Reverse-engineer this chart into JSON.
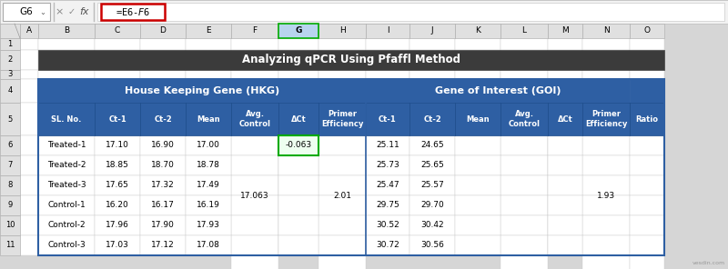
{
  "title": "Analyzing qPCR Using Pfaffl Method",
  "formula_bar_text": "=E6-$F$6",
  "cell_ref": "G6",
  "col_headers": [
    "A",
    "B",
    "C",
    "D",
    "E",
    "F",
    "G",
    "H",
    "I",
    "J",
    "K",
    "L",
    "M",
    "N",
    "O"
  ],
  "header_row4_hkg": "House Keeping Gene (HKG)",
  "header_row4_goi": "Gene of Interest (GOI)",
  "subheaders_hkg": [
    "SL. No.",
    "Ct-1",
    "Ct-2",
    "Mean",
    "Avg.\nControl",
    "ΔCt",
    "Primer\nEfficiency"
  ],
  "subheaders_goi": [
    "Ct-1",
    "Ct-2",
    "Mean",
    "Avg.\nControl",
    "ΔCt",
    "Primer\nEfficiency"
  ],
  "ratio_label": "Ratio",
  "data_rows": [
    [
      "Treated-1",
      "17.10",
      "16.90",
      "17.00",
      "",
      "-0.063",
      "",
      "25.11",
      "24.65",
      "",
      "",
      "",
      "",
      ""
    ],
    [
      "Treated-2",
      "18.85",
      "18.70",
      "18.78",
      "",
      "",
      "",
      "25.73",
      "25.65",
      "",
      "",
      "",
      "",
      ""
    ],
    [
      "Treated-3",
      "17.65",
      "17.32",
      "17.49",
      "",
      "",
      "",
      "25.47",
      "25.57",
      "",
      "",
      "",
      "",
      ""
    ],
    [
      "Control-1",
      "16.20",
      "16.17",
      "16.19",
      "",
      "",
      "",
      "29.75",
      "29.70",
      "",
      "",
      "",
      "",
      ""
    ],
    [
      "Control-2",
      "17.96",
      "17.90",
      "17.93",
      "",
      "",
      "",
      "30.52",
      "30.42",
      "",
      "",
      "",
      "",
      ""
    ],
    [
      "Control-3",
      "17.03",
      "17.12",
      "17.08",
      "",
      "",
      "",
      "30.72",
      "30.56",
      "",
      "",
      "",
      "",
      ""
    ]
  ],
  "merged_avg_control_hkg": "17.063",
  "merged_primer_eff_hkg": "2.01",
  "merged_primer_eff_goi": "1.93",
  "colors": {
    "title_bg": "#3b3b3b",
    "title_text": "#ffffff",
    "header_bg": "#2e5fa3",
    "header_text": "#ffffff",
    "cell_bg": "#ffffff",
    "cell_text": "#000000",
    "grid_line": "#cccccc",
    "selected_cell_border": "#00aa00",
    "selected_cell_bg": "#eefff0",
    "row_num_bg": "#e8e8e8",
    "col_header_bg": "#e8e8e8",
    "col_header_selected_bg": "#b8d4ee",
    "formula_bar_bg": "#f2f2f2",
    "formula_highlight_border": "#cc0000",
    "outer_table_border": "#2e5fa3",
    "separator_bg": "#f2f2f2"
  },
  "figsize": [
    8.0,
    2.96
  ],
  "dpi": 100
}
